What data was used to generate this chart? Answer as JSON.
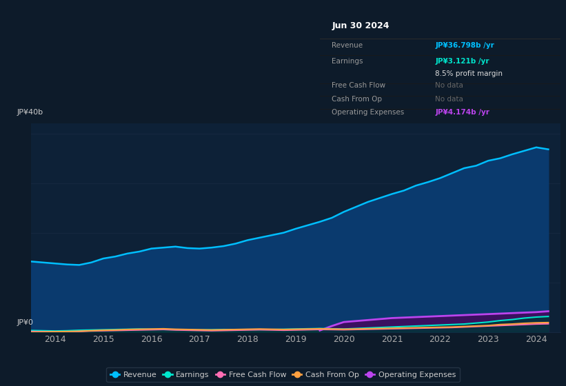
{
  "background_color": "#0d1b2a",
  "plot_bg_color": "#0d2137",
  "ylabel_text": "JP¥40b",
  "ylabel0_text": "JP¥0",
  "x_years": [
    2013.5,
    2013.75,
    2014,
    2014.25,
    2014.5,
    2014.75,
    2015,
    2015.25,
    2015.5,
    2015.75,
    2016,
    2016.25,
    2016.5,
    2016.75,
    2017,
    2017.25,
    2017.5,
    2017.75,
    2018,
    2018.25,
    2018.5,
    2018.75,
    2019,
    2019.25,
    2019.5,
    2019.75,
    2020,
    2020.25,
    2020.5,
    2020.75,
    2021,
    2021.25,
    2021.5,
    2021.75,
    2022,
    2022.25,
    2022.5,
    2022.75,
    2023,
    2023.25,
    2023.5,
    2023.75,
    2024,
    2024.25
  ],
  "revenue": [
    14.2,
    14.0,
    13.8,
    13.6,
    13.5,
    14.0,
    14.8,
    15.2,
    15.8,
    16.2,
    16.8,
    17.0,
    17.2,
    16.9,
    16.8,
    17.0,
    17.3,
    17.8,
    18.5,
    19.0,
    19.5,
    20.0,
    20.8,
    21.5,
    22.2,
    23.0,
    24.2,
    25.2,
    26.2,
    27.0,
    27.8,
    28.5,
    29.5,
    30.2,
    31.0,
    32.0,
    33.0,
    33.5,
    34.5,
    35.0,
    35.8,
    36.5,
    37.2,
    36.798
  ],
  "earnings": [
    0.3,
    0.25,
    0.2,
    0.25,
    0.35,
    0.4,
    0.45,
    0.5,
    0.55,
    0.6,
    0.55,
    0.5,
    0.48,
    0.45,
    0.42,
    0.45,
    0.5,
    0.48,
    0.5,
    0.48,
    0.5,
    0.55,
    0.6,
    0.65,
    0.7,
    0.65,
    0.6,
    0.7,
    0.8,
    0.9,
    1.0,
    1.1,
    1.2,
    1.3,
    1.4,
    1.5,
    1.6,
    1.8,
    2.0,
    2.3,
    2.5,
    2.8,
    3.0,
    3.121
  ],
  "free_cash_flow": [
    0.1,
    0.05,
    0.0,
    0.05,
    0.1,
    0.2,
    0.25,
    0.3,
    0.35,
    0.4,
    0.45,
    0.5,
    0.4,
    0.35,
    0.3,
    0.25,
    0.3,
    0.35,
    0.4,
    0.45,
    0.4,
    0.35,
    0.4,
    0.45,
    0.5,
    0.48,
    0.45,
    0.5,
    0.55,
    0.6,
    0.65,
    0.7,
    0.75,
    0.8,
    0.85,
    0.9,
    1.0,
    1.1,
    1.2,
    1.3,
    1.4,
    1.5,
    1.6,
    1.65
  ],
  "cash_from_op": [
    -0.05,
    0.0,
    0.05,
    0.1,
    0.15,
    0.25,
    0.35,
    0.4,
    0.5,
    0.55,
    0.6,
    0.65,
    0.55,
    0.5,
    0.45,
    0.4,
    0.45,
    0.5,
    0.55,
    0.6,
    0.55,
    0.5,
    0.55,
    0.6,
    0.65,
    0.6,
    0.55,
    0.6,
    0.65,
    0.7,
    0.75,
    0.8,
    0.85,
    0.9,
    0.95,
    1.0,
    1.1,
    1.2,
    1.3,
    1.5,
    1.6,
    1.75,
    1.85,
    1.9
  ],
  "op_expenses_x": [
    2019.5,
    2019.75,
    2020,
    2020.25,
    2020.5,
    2020.75,
    2021,
    2021.25,
    2021.5,
    2021.75,
    2022,
    2022.25,
    2022.5,
    2022.75,
    2023,
    2023.25,
    2023.5,
    2023.75,
    2024,
    2024.25
  ],
  "op_expenses": [
    0.3,
    1.2,
    2.0,
    2.2,
    2.4,
    2.6,
    2.8,
    2.9,
    3.0,
    3.1,
    3.2,
    3.3,
    3.4,
    3.5,
    3.6,
    3.7,
    3.8,
    3.9,
    4.0,
    4.174
  ],
  "revenue_color": "#00bfff",
  "earnings_color": "#00e5cc",
  "fcf_color": "#ff6eb4",
  "cashop_color": "#ffa040",
  "opexp_color": "#bb44ee",
  "revenue_fill_color": "#0a3a6e",
  "opexp_fill_color": "#3a1060",
  "earnings_fill_color": "#003838",
  "x_ticks": [
    2014,
    2015,
    2016,
    2017,
    2018,
    2019,
    2020,
    2021,
    2022,
    2023,
    2024
  ],
  "ylim": [
    0,
    42
  ],
  "xlim": [
    2013.5,
    2024.5
  ],
  "grid_color": "#162840",
  "annotation_date": "Jun 30 2024",
  "box_revenue_label": "Revenue",
  "box_revenue_value": "JP¥36.798b /yr",
  "box_earnings_label": "Earnings",
  "box_earnings_value": "JP¥3.121b /yr",
  "box_margin_text": "8.5% profit margin",
  "box_fcf_label": "Free Cash Flow",
  "box_fcf_value": "No data",
  "box_cop_label": "Cash From Op",
  "box_cop_value": "No data",
  "box_opex_label": "Operating Expenses",
  "box_opex_value": "JP¥4.174b /yr",
  "legend_items": [
    {
      "label": "Revenue",
      "color": "#00bfff"
    },
    {
      "label": "Earnings",
      "color": "#00e5cc"
    },
    {
      "label": "Free Cash Flow",
      "color": "#ff6eb4"
    },
    {
      "label": "Cash From Op",
      "color": "#ffa040"
    },
    {
      "label": "Operating Expenses",
      "color": "#bb44ee"
    }
  ]
}
